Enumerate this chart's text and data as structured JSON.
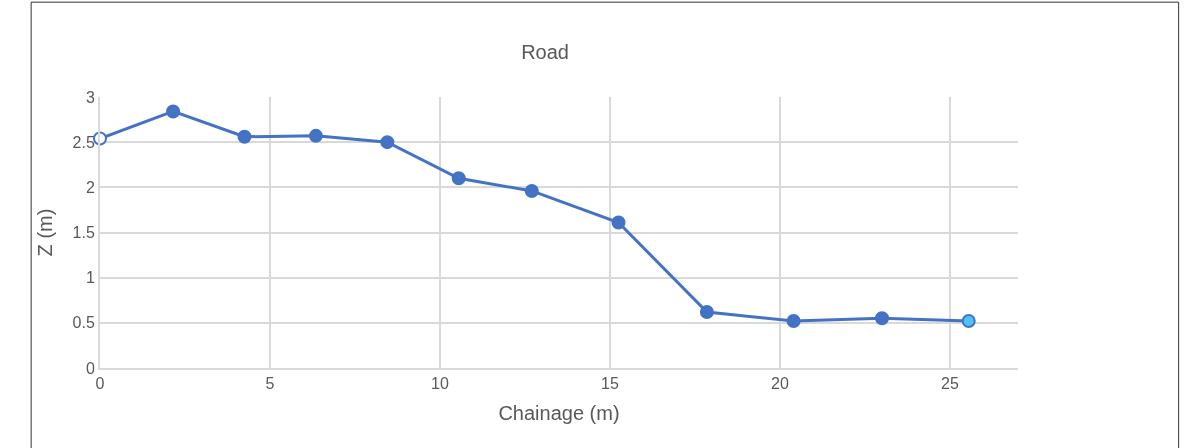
{
  "chart_data": {
    "type": "line",
    "title": "Road",
    "xlabel": "Chainage (m)",
    "ylabel": "Z (m)",
    "x": [
      0,
      2.15,
      4.25,
      6.35,
      8.45,
      10.55,
      12.7,
      15.25,
      17.85,
      20.4,
      23.0,
      25.55
    ],
    "series": [
      {
        "color": "#4472c4",
        "colors": [
          "#ffffff",
          "#4472c4",
          "#4472c4",
          "#4472c4",
          "#4472c4",
          "#4472c4",
          "#4472c4",
          "#4472c4",
          "#4472c4",
          "#4472c4",
          "#4472c4",
          "#4fc3f7"
        ],
        "values": [
          2.54,
          2.84,
          2.56,
          2.57,
          2.5,
          2.1,
          1.96,
          1.61,
          0.62,
          0.52,
          0.55,
          0.52
        ]
      }
    ],
    "xlim": [
      0,
      27
    ],
    "xticks": [
      0,
      5,
      10,
      15,
      20,
      25
    ],
    "ylim": [
      0,
      3
    ],
    "yticks": [
      0,
      0.5,
      1,
      1.5,
      2,
      2.5,
      3
    ],
    "grid": true,
    "legend": false,
    "marker": "circle",
    "line_style": "solid"
  }
}
